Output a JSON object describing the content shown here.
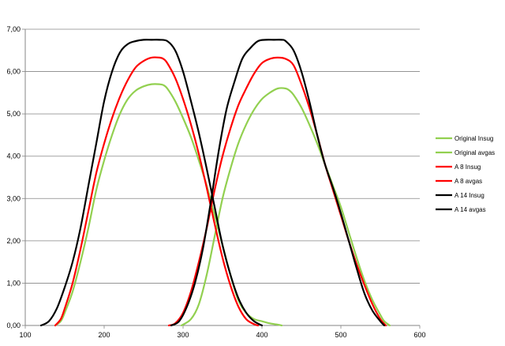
{
  "chart_data": {
    "type": "line",
    "title": "",
    "xlabel": "",
    "ylabel": "",
    "xlim": [
      100,
      600
    ],
    "ylim": [
      0,
      7
    ],
    "x_ticks": [
      "100",
      "200",
      "300",
      "400",
      "500",
      "600"
    ],
    "y_ticks": [
      "0,00",
      "1,00",
      "2,00",
      "3,00",
      "4,00",
      "5,00",
      "6,00",
      "7,00"
    ],
    "grid": "horizontal",
    "legend_position": "right",
    "series": [
      {
        "name": "Original Insug",
        "color": "#92d050",
        "points": [
          [
            138,
            0
          ],
          [
            145,
            0.1
          ],
          [
            150,
            0.3
          ],
          [
            160,
            0.8
          ],
          [
            170,
            1.5
          ],
          [
            180,
            2.3
          ],
          [
            190,
            3.2
          ],
          [
            200,
            3.9
          ],
          [
            210,
            4.5
          ],
          [
            220,
            5.0
          ],
          [
            230,
            5.35
          ],
          [
            240,
            5.55
          ],
          [
            250,
            5.65
          ],
          [
            260,
            5.7
          ],
          [
            270,
            5.7
          ],
          [
            275,
            5.68
          ],
          [
            280,
            5.6
          ],
          [
            290,
            5.3
          ],
          [
            300,
            4.9
          ],
          [
            310,
            4.45
          ],
          [
            320,
            3.9
          ],
          [
            330,
            3.3
          ],
          [
            340,
            2.6
          ],
          [
            350,
            1.9
          ],
          [
            360,
            1.2
          ],
          [
            370,
            0.6
          ],
          [
            380,
            0.3
          ],
          [
            390,
            0.15
          ],
          [
            400,
            0.1
          ],
          [
            410,
            0.05
          ],
          [
            420,
            0.02
          ],
          [
            425,
            0
          ]
        ]
      },
      {
        "name": "Original avgas",
        "color": "#92d050",
        "points": [
          [
            298,
            0
          ],
          [
            310,
            0.15
          ],
          [
            320,
            0.5
          ],
          [
            330,
            1.2
          ],
          [
            340,
            2.1
          ],
          [
            350,
            3.0
          ],
          [
            360,
            3.7
          ],
          [
            370,
            4.3
          ],
          [
            380,
            4.75
          ],
          [
            390,
            5.1
          ],
          [
            400,
            5.35
          ],
          [
            410,
            5.5
          ],
          [
            420,
            5.6
          ],
          [
            430,
            5.6
          ],
          [
            435,
            5.55
          ],
          [
            440,
            5.45
          ],
          [
            450,
            5.15
          ],
          [
            460,
            4.75
          ],
          [
            470,
            4.3
          ],
          [
            480,
            3.8
          ],
          [
            490,
            3.3
          ],
          [
            500,
            2.8
          ],
          [
            510,
            2.2
          ],
          [
            520,
            1.6
          ],
          [
            530,
            1.05
          ],
          [
            540,
            0.6
          ],
          [
            550,
            0.25
          ],
          [
            555,
            0.1
          ],
          [
            562,
            0
          ]
        ]
      },
      {
        "name": "A 8 Insug",
        "color": "#ff0000",
        "points": [
          [
            138,
            0
          ],
          [
            145,
            0.15
          ],
          [
            150,
            0.4
          ],
          [
            160,
            1.0
          ],
          [
            170,
            1.8
          ],
          [
            180,
            2.7
          ],
          [
            190,
            3.6
          ],
          [
            200,
            4.3
          ],
          [
            210,
            4.9
          ],
          [
            220,
            5.4
          ],
          [
            230,
            5.8
          ],
          [
            240,
            6.1
          ],
          [
            250,
            6.25
          ],
          [
            260,
            6.33
          ],
          [
            270,
            6.33
          ],
          [
            275,
            6.3
          ],
          [
            280,
            6.2
          ],
          [
            290,
            5.85
          ],
          [
            300,
            5.35
          ],
          [
            310,
            4.75
          ],
          [
            320,
            4.05
          ],
          [
            330,
            3.25
          ],
          [
            340,
            2.4
          ],
          [
            350,
            1.6
          ],
          [
            360,
            0.95
          ],
          [
            370,
            0.45
          ],
          [
            380,
            0.15
          ],
          [
            390,
            0.03
          ],
          [
            395,
            0
          ]
        ]
      },
      {
        "name": "A 8 avgas",
        "color": "#ff0000",
        "points": [
          [
            282,
            0
          ],
          [
            290,
            0.05
          ],
          [
            300,
            0.3
          ],
          [
            310,
            0.8
          ],
          [
            320,
            1.5
          ],
          [
            330,
            2.3
          ],
          [
            340,
            3.2
          ],
          [
            350,
            4.0
          ],
          [
            360,
            4.65
          ],
          [
            370,
            5.2
          ],
          [
            380,
            5.6
          ],
          [
            390,
            5.95
          ],
          [
            400,
            6.2
          ],
          [
            410,
            6.3
          ],
          [
            420,
            6.33
          ],
          [
            430,
            6.3
          ],
          [
            440,
            6.15
          ],
          [
            450,
            5.7
          ],
          [
            460,
            5.15
          ],
          [
            470,
            4.5
          ],
          [
            480,
            3.8
          ],
          [
            490,
            3.2
          ],
          [
            500,
            2.6
          ],
          [
            510,
            2.0
          ],
          [
            520,
            1.45
          ],
          [
            530,
            0.95
          ],
          [
            540,
            0.5
          ],
          [
            550,
            0.15
          ],
          [
            557,
            0
          ]
        ]
      },
      {
        "name": "A 14 Insug",
        "color": "#000000",
        "points": [
          [
            120,
            0
          ],
          [
            130,
            0.1
          ],
          [
            140,
            0.4
          ],
          [
            150,
            0.9
          ],
          [
            160,
            1.5
          ],
          [
            170,
            2.3
          ],
          [
            180,
            3.3
          ],
          [
            190,
            4.3
          ],
          [
            200,
            5.3
          ],
          [
            210,
            6.0
          ],
          [
            220,
            6.45
          ],
          [
            230,
            6.65
          ],
          [
            240,
            6.72
          ],
          [
            250,
            6.75
          ],
          [
            260,
            6.75
          ],
          [
            270,
            6.75
          ],
          [
            280,
            6.72
          ],
          [
            290,
            6.5
          ],
          [
            300,
            6.0
          ],
          [
            310,
            5.3
          ],
          [
            320,
            4.55
          ],
          [
            330,
            3.7
          ],
          [
            340,
            2.8
          ],
          [
            350,
            1.9
          ],
          [
            360,
            1.2
          ],
          [
            370,
            0.65
          ],
          [
            380,
            0.3
          ],
          [
            390,
            0.1
          ],
          [
            400,
            0
          ]
        ]
      },
      {
        "name": "A 14 avgas",
        "color": "#000000",
        "points": [
          [
            285,
            0
          ],
          [
            295,
            0.1
          ],
          [
            305,
            0.45
          ],
          [
            315,
            1.0
          ],
          [
            325,
            1.8
          ],
          [
            335,
            2.9
          ],
          [
            345,
            4.1
          ],
          [
            355,
            5.1
          ],
          [
            365,
            5.75
          ],
          [
            375,
            6.3
          ],
          [
            385,
            6.55
          ],
          [
            395,
            6.72
          ],
          [
            405,
            6.75
          ],
          [
            415,
            6.75
          ],
          [
            425,
            6.75
          ],
          [
            430,
            6.72
          ],
          [
            440,
            6.5
          ],
          [
            450,
            6.0
          ],
          [
            460,
            5.3
          ],
          [
            470,
            4.5
          ],
          [
            480,
            3.8
          ],
          [
            490,
            3.25
          ],
          [
            500,
            2.65
          ],
          [
            510,
            2.0
          ],
          [
            520,
            1.35
          ],
          [
            530,
            0.75
          ],
          [
            540,
            0.35
          ],
          [
            550,
            0.1
          ],
          [
            555,
            0
          ]
        ]
      }
    ]
  }
}
